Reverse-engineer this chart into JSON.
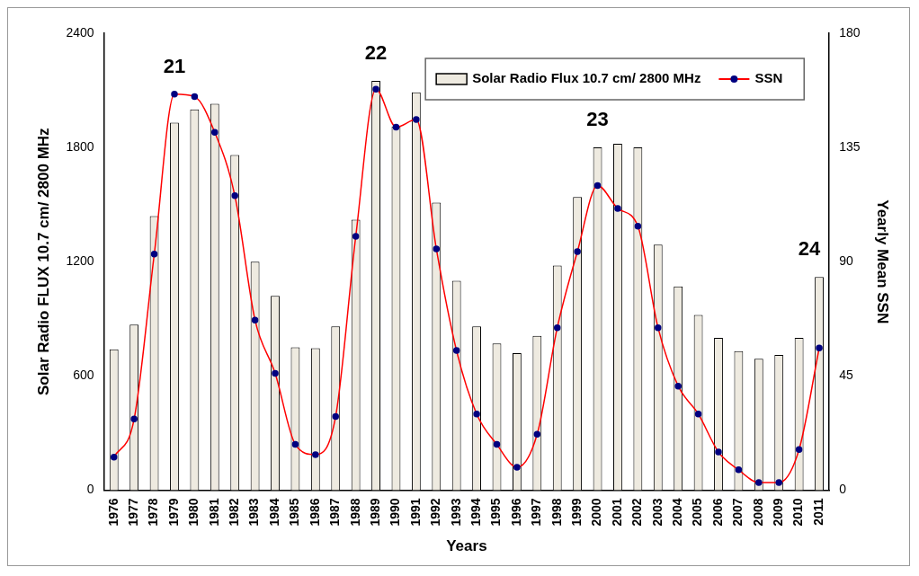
{
  "chart_data": {
    "type": "bar",
    "xlabel": "Years",
    "ylabel": "Solar Radio FLUX 10.7 cm/ 2800 MHz",
    "y2label": "Yearly Mean SSN",
    "categories": [
      "1976",
      "1977",
      "1978",
      "1979",
      "1980",
      "1981",
      "1982",
      "1983",
      "1984",
      "1985",
      "1986",
      "1987",
      "1988",
      "1989",
      "1990",
      "1991",
      "1992",
      "1993",
      "1994",
      "1995",
      "1996",
      "1997",
      "1998",
      "1999",
      "2000",
      "2001",
      "2002",
      "2003",
      "2004",
      "2005",
      "2006",
      "2007",
      "2008",
      "2009",
      "2010",
      "2011"
    ],
    "series": [
      {
        "name": "Solar Radio Flux 10.7 cm/ 2800 MHz",
        "type": "bar",
        "color": "#eeeae0",
        "values": [
          740,
          870,
          1440,
          1930,
          2000,
          2030,
          1760,
          1200,
          1020,
          750,
          745,
          860,
          1420,
          2150,
          1910,
          2090,
          1510,
          1100,
          860,
          770,
          720,
          810,
          1180,
          1540,
          1800,
          1820,
          1800,
          1290,
          1070,
          920,
          800,
          730,
          690,
          710,
          800,
          1120
        ]
      },
      {
        "name": "SSN",
        "type": "line",
        "axis": "y2",
        "color": "#ff0000",
        "values": [
          13,
          28,
          93,
          156,
          155,
          141,
          116,
          67,
          46,
          18,
          14,
          29,
          100,
          158,
          143,
          146,
          95,
          55,
          30,
          18,
          9,
          22,
          64,
          94,
          120,
          111,
          104,
          64,
          41,
          30,
          15,
          8,
          3,
          3,
          16,
          56
        ]
      }
    ],
    "ylim": [
      0,
      2400
    ],
    "yticks": [
      0,
      600,
      1200,
      1800,
      2400
    ],
    "y2lim": [
      0,
      180
    ],
    "y2ticks": [
      0,
      45,
      90,
      135,
      180
    ],
    "grid": false,
    "legend": "top right",
    "marker": "circle",
    "line_style": "solid",
    "annotations": [
      "21",
      "22",
      "23",
      "24"
    ]
  }
}
